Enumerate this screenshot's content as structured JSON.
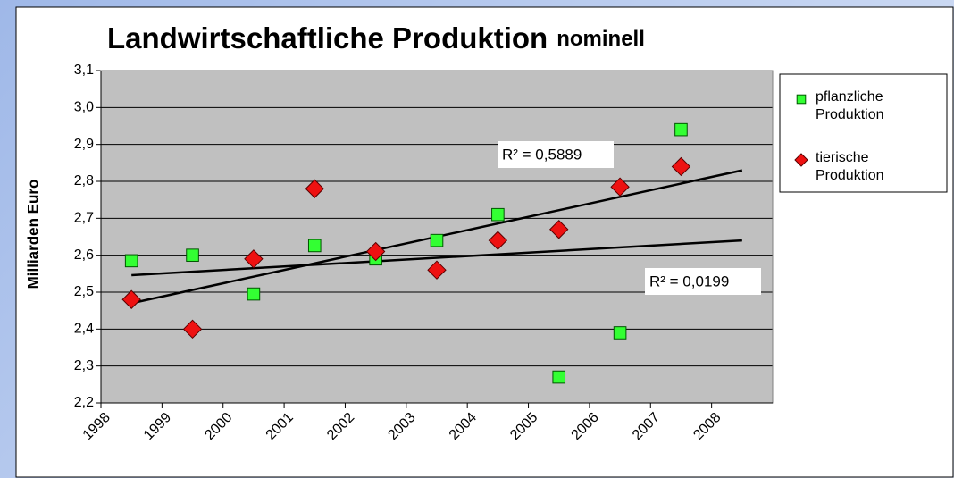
{
  "chart_data": {
    "type": "scatter",
    "title": "Landwirtschaftliche Produktion",
    "subtitle": "nominell",
    "y_label": "Milliarden Euro",
    "xlim": [
      1998,
      2009
    ],
    "xticks": [
      1998,
      1999,
      2000,
      2001,
      2002,
      2003,
      2004,
      2005,
      2006,
      2007,
      2008
    ],
    "ylim": [
      2.2,
      3.1
    ],
    "yticks": [
      {
        "value": 2.2,
        "label": "2,2"
      },
      {
        "value": 2.3,
        "label": "2,3"
      },
      {
        "value": 2.4,
        "label": "2,4"
      },
      {
        "value": 2.5,
        "label": "2,5"
      },
      {
        "value": 2.6,
        "label": "2,6"
      },
      {
        "value": 2.7,
        "label": "2,7"
      },
      {
        "value": 2.8,
        "label": "2,8"
      },
      {
        "value": 2.9,
        "label": "2,9"
      },
      {
        "value": 3.0,
        "label": "3,0"
      },
      {
        "value": 3.1,
        "label": "3,1"
      }
    ],
    "grid": true,
    "legend": "right",
    "x": [
      1998.5,
      1999.5,
      2000.5,
      2001.5,
      2002.5,
      2003.5,
      2004.5,
      2005.5,
      2006.5,
      2007.5
    ],
    "series": [
      {
        "name": "pflanzliche Produktion",
        "color": "#33ff33",
        "marker": "square",
        "values": [
          2.585,
          2.6,
          2.495,
          2.626,
          2.59,
          2.64,
          2.71,
          2.27,
          2.39,
          2.94
        ]
      },
      {
        "name": "tierische Produktion",
        "color": "#ee1111",
        "marker": "diamond",
        "values": [
          2.48,
          2.4,
          2.59,
          2.78,
          2.61,
          2.56,
          2.64,
          2.67,
          2.785,
          2.84
        ]
      }
    ],
    "trendlines": [
      {
        "label": "R² = 0,0199",
        "x": [
          1998.5,
          2008.5
        ],
        "values": [
          2.546,
          2.64
        ]
      },
      {
        "label": "R² = 0,5889",
        "x": [
          1998.5,
          2008.5
        ],
        "values": [
          2.47,
          2.83
        ]
      }
    ]
  }
}
